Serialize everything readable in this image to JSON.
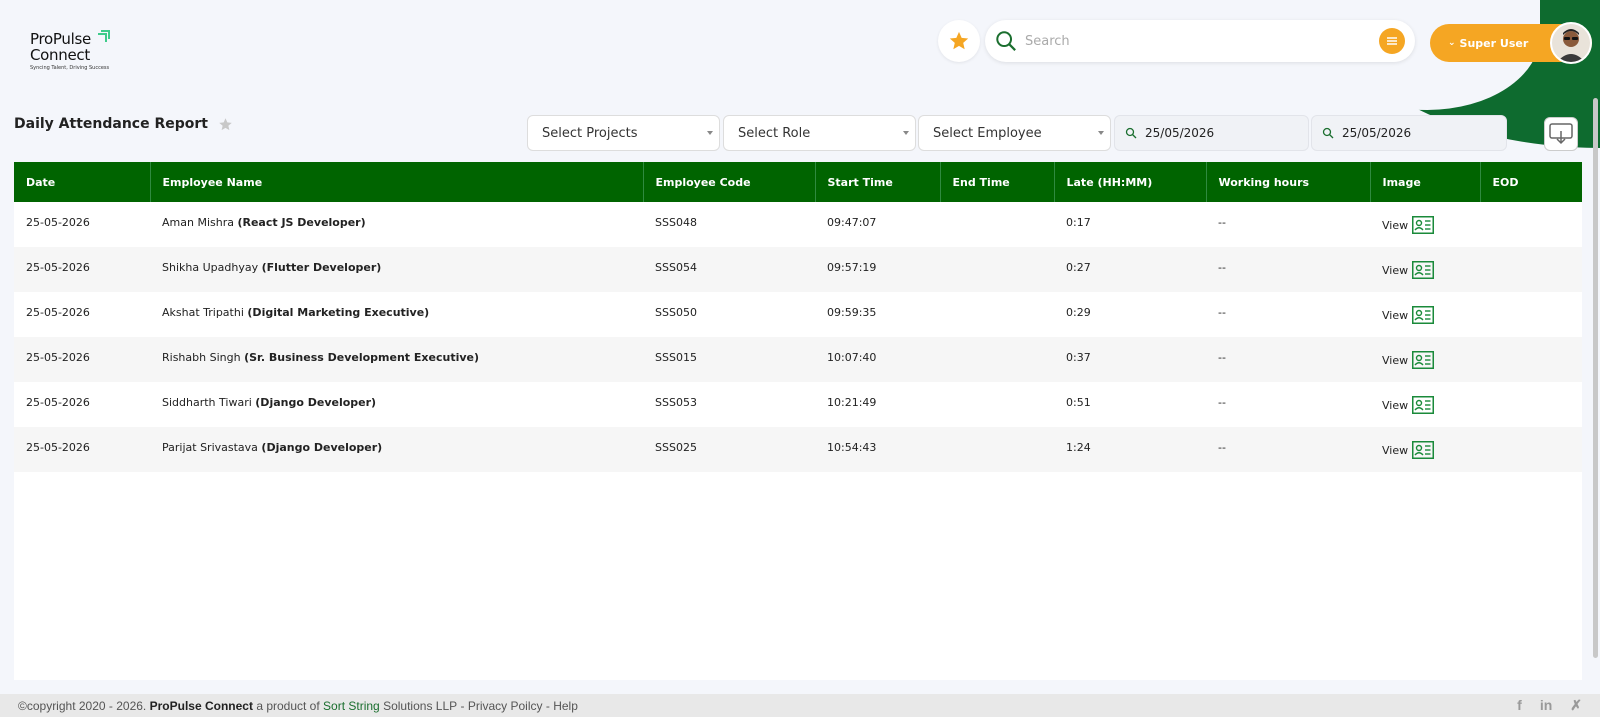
{
  "brand": {
    "line1": "ProPulse",
    "line2": "Connect",
    "tagline": "Syncing Talent, Driving Success",
    "accent_color": "#3ecb8a"
  },
  "header": {
    "favorite_icon": "star-icon",
    "search_placeholder": "Search",
    "user_label": "Super User"
  },
  "page": {
    "title": "Daily Attendance Report"
  },
  "filters": {
    "projects": "Select Projects",
    "role": "Select Role",
    "employee": "Select Employee",
    "from_date": "25/05/2026",
    "to_date": "25/05/2026"
  },
  "table": {
    "headers": [
      "Date",
      "Employee Name",
      "Employee Code",
      "Start Time",
      "End Time",
      "Late (HH:MM)",
      "Working hours",
      "Image",
      "EOD"
    ],
    "view_label": "View",
    "rows": [
      {
        "date": "25-05-2026",
        "name": "Aman Mishra",
        "role": "(React JS Developer)",
        "code": "SSS048",
        "start": "09:47:07",
        "end": "",
        "late": "0:17",
        "hours": "--"
      },
      {
        "date": "25-05-2026",
        "name": "Shikha Upadhyay",
        "role": "(Flutter Developer)",
        "code": "SSS054",
        "start": "09:57:19",
        "end": "",
        "late": "0:27",
        "hours": "--"
      },
      {
        "date": "25-05-2026",
        "name": "Akshat Tripathi",
        "role": "(Digital Marketing Executive)",
        "code": "SSS050",
        "start": "09:59:35",
        "end": "",
        "late": "0:29",
        "hours": "--"
      },
      {
        "date": "25-05-2026",
        "name": "Rishabh Singh",
        "role": "(Sr. Business Development Executive)",
        "code": "SSS015",
        "start": "10:07:40",
        "end": "",
        "late": "0:37",
        "hours": "--"
      },
      {
        "date": "25-05-2026",
        "name": "Siddharth Tiwari",
        "role": "(Django Developer)",
        "code": "SSS053",
        "start": "10:21:49",
        "end": "",
        "late": "0:51",
        "hours": "--"
      },
      {
        "date": "25-05-2026",
        "name": "Parijat Srivastava",
        "role": "(Django Developer)",
        "code": "SSS025",
        "start": "10:54:43",
        "end": "",
        "late": "1:24",
        "hours": "--"
      }
    ]
  },
  "footer": {
    "copyright": "©copyright 2020 - 2026.",
    "brand": "ProPulse Connect",
    "product_of": "a product of",
    "company_link": "Sort String",
    "company_rest": "Solutions LLP",
    "sep1": "-",
    "privacy": "Privacy Poilcy",
    "sep2": "-",
    "help": "Help",
    "social": [
      "f",
      "in",
      "✗"
    ]
  },
  "colors": {
    "primary_green": "#006400",
    "accent_orange": "#f5a623"
  }
}
